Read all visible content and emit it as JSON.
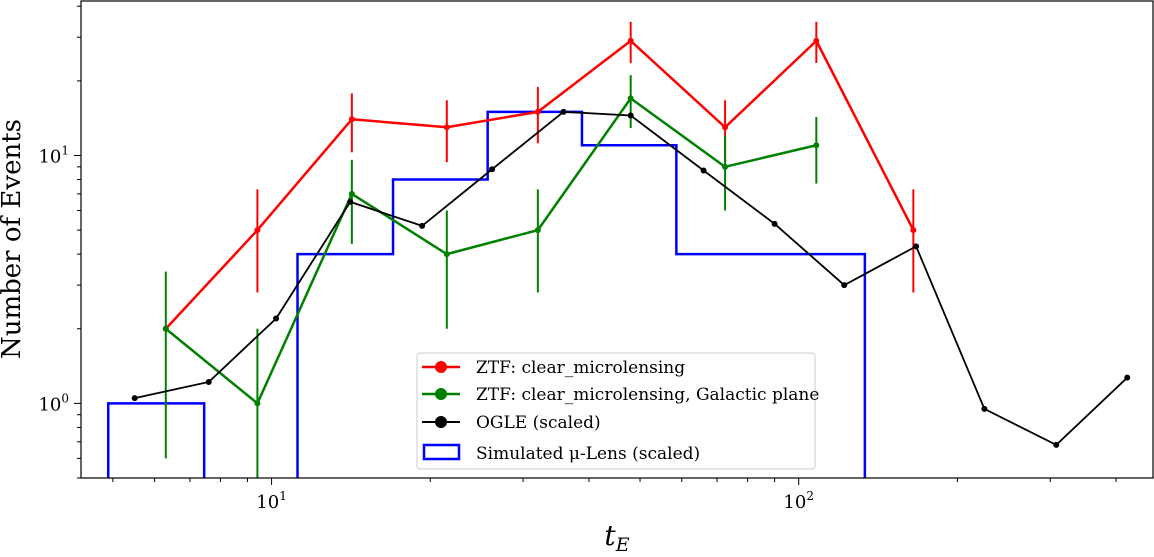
{
  "chart_data": {
    "type": "line",
    "title": "",
    "xlabel_main": "t",
    "xlabel_sub": "E",
    "ylabel": "Number of Events",
    "xscale": "log",
    "yscale": "log",
    "xlim": [
      4.35,
      470
    ],
    "ylim": [
      0.5,
      42
    ],
    "x_ticks": [
      {
        "value": 10,
        "base": "10",
        "exp": "1"
      },
      {
        "value": 100,
        "base": "10",
        "exp": "2"
      }
    ],
    "y_ticks": [
      {
        "value": 1,
        "base": "10",
        "exp": "0"
      },
      {
        "value": 10,
        "base": "10",
        "exp": "1"
      }
    ],
    "legend_position": "lower-center",
    "series": [
      {
        "name": "ZTF: clear_microlensing",
        "color": "#ff0000",
        "points": [
          {
            "x": 6.3,
            "y": 2,
            "lo": null,
            "hi": null
          },
          {
            "x": 9.4,
            "y": 5,
            "lo": 2.8,
            "hi": 7.3
          },
          {
            "x": 14.2,
            "y": 14,
            "lo": 10.3,
            "hi": 17.8
          },
          {
            "x": 21.5,
            "y": 13,
            "lo": 9.4,
            "hi": 16.7
          },
          {
            "x": 32.0,
            "y": 15,
            "lo": 11.2,
            "hi": 18.9
          },
          {
            "x": 48.0,
            "y": 29,
            "lo": 23.6,
            "hi": 34.6
          },
          {
            "x": 72.5,
            "y": 13,
            "lo": 9.4,
            "hi": 16.7
          },
          {
            "x": 108,
            "y": 29,
            "lo": 23.6,
            "hi": 34.6
          },
          {
            "x": 165,
            "y": 5,
            "lo": 2.8,
            "hi": 7.3
          }
        ]
      },
      {
        "name": "ZTF: clear_microlensing, Galactic plane",
        "color": "#008000",
        "points": [
          {
            "x": 6.3,
            "y": 2,
            "lo": 0.6,
            "hi": 3.4
          },
          {
            "x": 9.4,
            "y": 1,
            "lo": 0.45,
            "hi": 2.0
          },
          {
            "x": 14.2,
            "y": 7,
            "lo": 4.4,
            "hi": 9.6
          },
          {
            "x": 21.5,
            "y": 4,
            "lo": 2.0,
            "hi": 6.0
          },
          {
            "x": 32.0,
            "y": 5,
            "lo": 2.8,
            "hi": 7.3
          },
          {
            "x": 48.0,
            "y": 17,
            "lo": 12.9,
            "hi": 21.1
          },
          {
            "x": 72.5,
            "y": 9,
            "lo": 6.0,
            "hi": 12.0
          },
          {
            "x": 108,
            "y": 11,
            "lo": 7.7,
            "hi": 14.3
          }
        ]
      },
      {
        "name": "OGLE (scaled)",
        "color": "#000000",
        "points": [
          {
            "x": 5.5,
            "y": 1.05
          },
          {
            "x": 7.6,
            "y": 1.22
          },
          {
            "x": 10.2,
            "y": 2.2
          },
          {
            "x": 14.1,
            "y": 6.5
          },
          {
            "x": 19.3,
            "y": 5.2
          },
          {
            "x": 26.2,
            "y": 8.8
          },
          {
            "x": 35.8,
            "y": 15.0
          },
          {
            "x": 48.0,
            "y": 14.5
          },
          {
            "x": 66.0,
            "y": 8.7
          },
          {
            "x": 90.0,
            "y": 5.3
          },
          {
            "x": 122,
            "y": 3.0
          },
          {
            "x": 167,
            "y": 4.3
          },
          {
            "x": 225,
            "y": 0.95
          },
          {
            "x": 308,
            "y": 0.68
          },
          {
            "x": 420,
            "y": 1.27
          }
        ]
      },
      {
        "name": "Simulated μ-Lens (scaled)",
        "color": "#0000ff",
        "type": "step",
        "bin_edges": [
          4.9,
          7.45,
          11.2,
          17.0,
          25.7,
          38.8,
          58.6,
          88.5,
          133.5
        ],
        "values": [
          1,
          0.45,
          4,
          8,
          15,
          11,
          4,
          4
        ]
      }
    ]
  }
}
